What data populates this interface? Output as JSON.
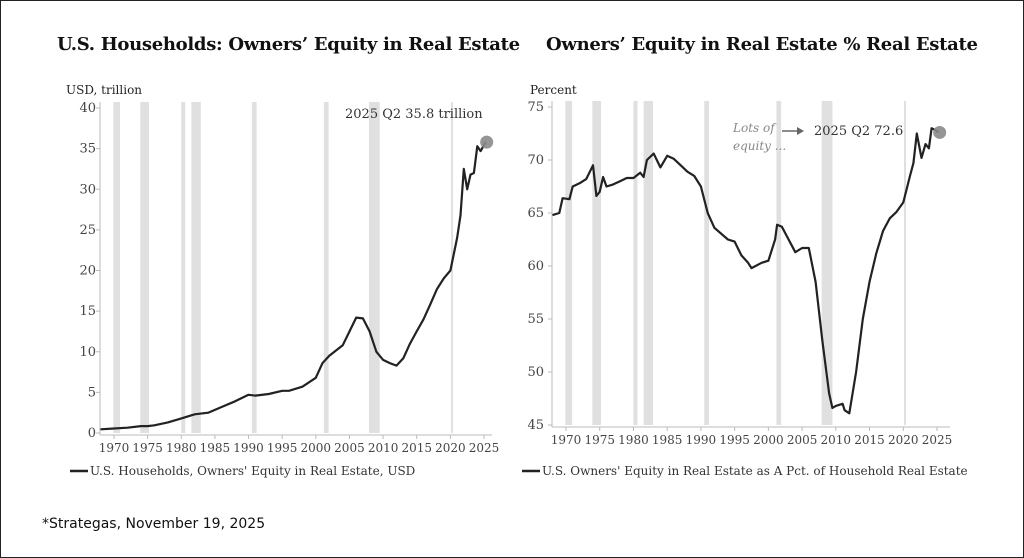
{
  "footer": "*Strategas, November 19, 2025",
  "colors": {
    "line": "#222222",
    "recession": "#e0e0e0",
    "marker": "#8a8a8a",
    "axis": "#bbbbbb",
    "text": "#444444"
  },
  "chart_data": [
    {
      "type": "line",
      "title": "U.S. Households: Owners’ Equity in Real Estate",
      "ylabel": "USD, trillion",
      "xlabel": "",
      "ylim": [
        0,
        40
      ],
      "xlim": [
        1968,
        2026.5
      ],
      "yticks": [
        0,
        5,
        10,
        15,
        20,
        25,
        30,
        35,
        40
      ],
      "xticks": [
        1970,
        1975,
        1980,
        1985,
        1990,
        1995,
        2000,
        2005,
        2010,
        2015,
        2020,
        2025
      ],
      "legend": "U.S. Households, Owners' Equity in Real Estate, USD",
      "legend_position": "bottom-left",
      "annotation": "2025 Q2 35.8 trillion",
      "recessions": [
        [
          1969.9,
          1970.9
        ],
        [
          1973.9,
          1975.2
        ],
        [
          1980.0,
          1980.6
        ],
        [
          1981.5,
          1982.9
        ],
        [
          1990.5,
          1991.2
        ],
        [
          2001.2,
          2001.9
        ],
        [
          2007.9,
          2009.5
        ],
        [
          2020.1,
          2020.4
        ]
      ],
      "series": [
        {
          "name": "U.S. Households, Owners' Equity in Real Estate, USD",
          "x": [
            1968,
            1970,
            1972,
            1974,
            1975,
            1976,
            1978,
            1980,
            1982,
            1984,
            1986,
            1988,
            1990,
            1991,
            1993,
            1995,
            1996,
            1998,
            2000,
            2001,
            2002,
            2004,
            2005,
            2006,
            2007,
            2008,
            2009,
            2010,
            2011,
            2012,
            2013,
            2014,
            2015,
            2016,
            2017,
            2018,
            2019,
            2020,
            2021,
            2021.5,
            2022,
            2022.5,
            2023,
            2023.5,
            2024,
            2024.5,
            2025.25
          ],
          "y": [
            0.45,
            0.55,
            0.65,
            0.85,
            0.85,
            0.95,
            1.3,
            1.8,
            2.3,
            2.5,
            3.2,
            3.9,
            4.7,
            4.6,
            4.8,
            5.2,
            5.2,
            5.7,
            6.8,
            8.6,
            9.5,
            10.8,
            12.5,
            14.2,
            14.1,
            12.5,
            10.0,
            9.0,
            8.6,
            8.3,
            9.2,
            11,
            12.5,
            14,
            15.8,
            17.7,
            19,
            20,
            24,
            26.8,
            32.5,
            30,
            31.8,
            32,
            35.3,
            34.7,
            35.8
          ]
        }
      ]
    },
    {
      "type": "line",
      "title": "Owners’ Equity in Real Estate % Real Estate",
      "ylabel": "Percent",
      "xlabel": "",
      "ylim": [
        45,
        75
      ],
      "xlim": [
        1968,
        2026.5
      ],
      "yticks": [
        45,
        50,
        55,
        60,
        65,
        70,
        75
      ],
      "xticks": [
        1970,
        1975,
        1980,
        1985,
        1990,
        1995,
        2000,
        2005,
        2010,
        2015,
        2020,
        2025
      ],
      "legend": "U.S. Owners' Equity in Real Estate as A Pct. of Household Real Estate",
      "legend_position": "bottom-left",
      "annotation": "2025 Q2 72.6",
      "note": "Lots of equity ...",
      "recessions": [
        [
          1969.9,
          1970.9
        ],
        [
          1973.9,
          1975.2
        ],
        [
          1980.0,
          1980.6
        ],
        [
          1981.5,
          1982.9
        ],
        [
          1990.5,
          1991.2
        ],
        [
          2001.2,
          2001.9
        ],
        [
          2007.9,
          2009.5
        ],
        [
          2020.1,
          2020.4
        ]
      ],
      "series": [
        {
          "name": "U.S. Owners' Equity in Real Estate as A Pct. of Household Real Estate",
          "x": [
            1968,
            1969,
            1969.5,
            1970.5,
            1971,
            1972,
            1973,
            1974,
            1974.5,
            1975,
            1975.5,
            1976,
            1977,
            1978,
            1979,
            1980,
            1981,
            1981.5,
            1982,
            1983,
            1984,
            1985,
            1986,
            1987,
            1988,
            1989,
            1990,
            1991,
            1992,
            1994,
            1995,
            1996,
            1997,
            1997.5,
            1999,
            2000,
            2001,
            2001.3,
            2002,
            2003,
            2004,
            2005,
            2006,
            2007,
            2008,
            2009,
            2009.5,
            2010,
            2011,
            2011.3,
            2012,
            2013,
            2014,
            2015,
            2016,
            2017,
            2018,
            2019,
            2020,
            2021,
            2021.5,
            2022,
            2022.7,
            2023.3,
            2023.8,
            2024.2,
            2024.8,
            2025.25
          ],
          "y": [
            64.8,
            65,
            66.4,
            66.3,
            67.5,
            67.8,
            68.2,
            69.5,
            66.6,
            67,
            68.4,
            67.5,
            67.7,
            68,
            68.3,
            68.3,
            68.8,
            68.4,
            70,
            70.6,
            69.3,
            70.4,
            70.1,
            69.5,
            68.9,
            68.5,
            67.5,
            65,
            63.6,
            62.5,
            62.3,
            61,
            60.3,
            59.8,
            60.3,
            60.5,
            62.5,
            63.9,
            63.7,
            62.5,
            61.3,
            61.7,
            61.7,
            58.5,
            53,
            48,
            46.6,
            46.8,
            47,
            46.4,
            46.1,
            50,
            55,
            58.5,
            61.2,
            63.3,
            64.5,
            65.1,
            66,
            68.5,
            69.7,
            72.5,
            70.2,
            71.5,
            71.1,
            73,
            72.8,
            72.6
          ]
        }
      ]
    }
  ]
}
